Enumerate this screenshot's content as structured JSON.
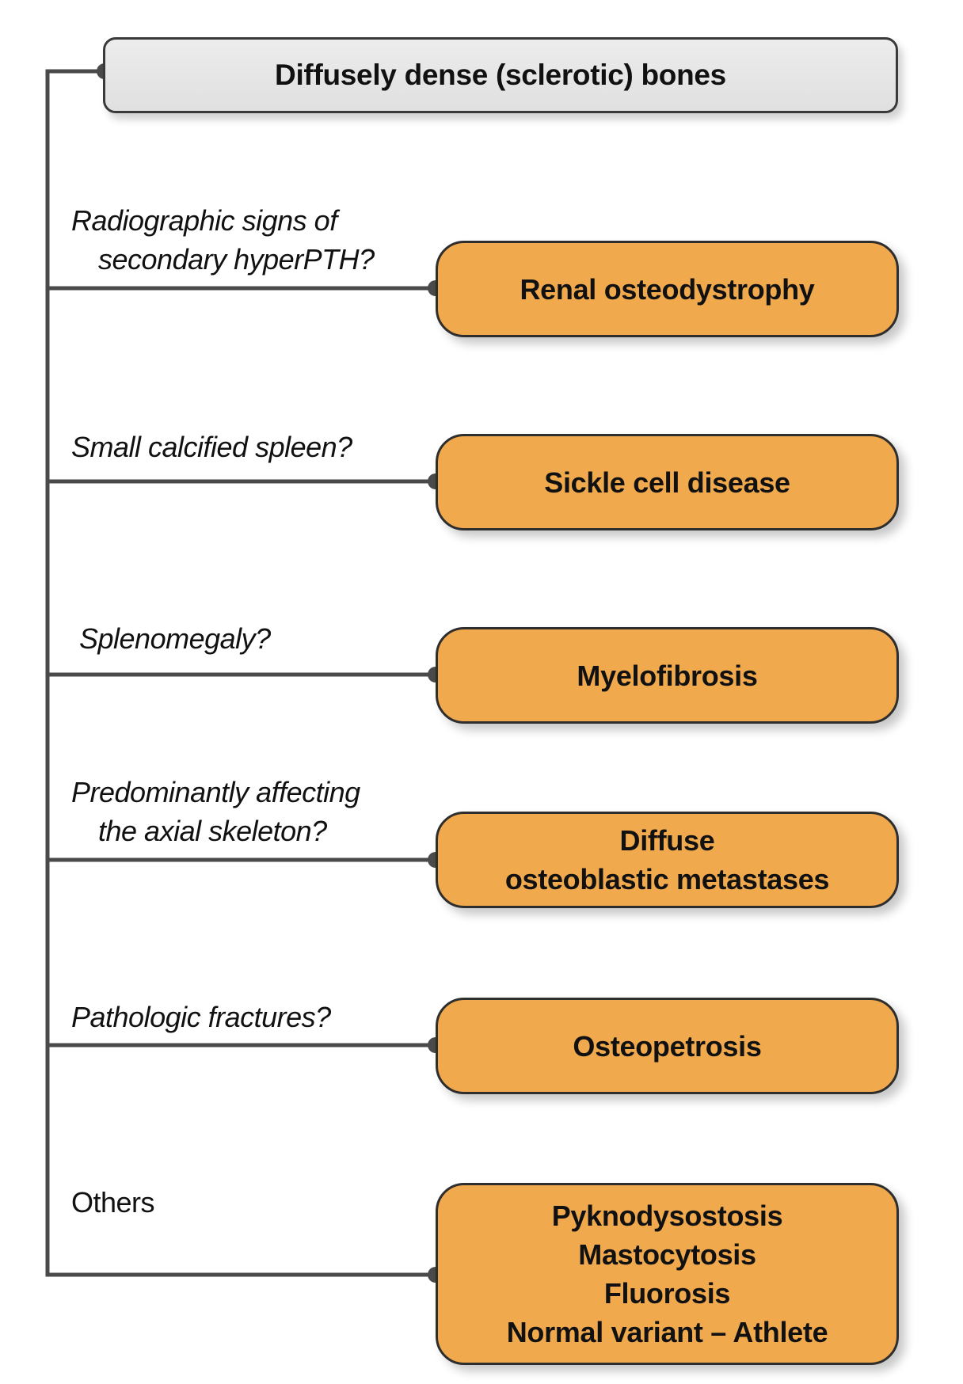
{
  "root": {
    "label": "Diffusely dense (sclerotic) bones"
  },
  "colors": {
    "connector": "#4a4a4a",
    "result_fill": "#f0a94c",
    "root_fill": "#e6e6e6"
  },
  "branches": [
    {
      "question_lines": [
        "Radiographic signs of",
        "secondary hyperPTH?"
      ],
      "result_lines": [
        "Renal osteodystrophy"
      ]
    },
    {
      "question_lines": [
        "Small calcified spleen?"
      ],
      "result_lines": [
        "Sickle cell disease"
      ]
    },
    {
      "question_lines": [
        "Splenomegaly?"
      ],
      "result_lines": [
        "Myelofibrosis"
      ]
    },
    {
      "question_lines": [
        "Predominantly affecting",
        "the axial skeleton?"
      ],
      "result_lines": [
        "Diffuse",
        "osteoblastic metastases"
      ]
    },
    {
      "question_lines": [
        "Pathologic fractures?"
      ],
      "result_lines": [
        "Osteopetrosis"
      ]
    },
    {
      "question_lines": [
        "Others"
      ],
      "result_lines": [
        "Pyknodysostosis",
        "Mastocytosis",
        "Fluorosis",
        "Normal variant – Athlete"
      ]
    }
  ]
}
